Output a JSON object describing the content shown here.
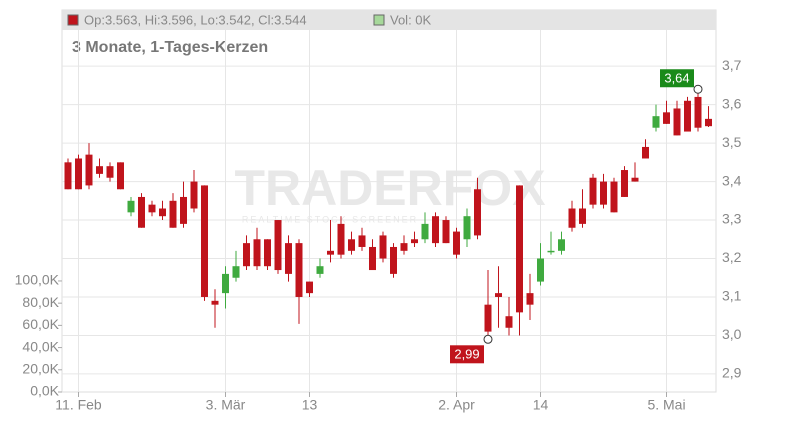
{
  "chart_data": {
    "type": "candlestick",
    "header": "Op:3.563, Hi:3.596, Lo:3.542, Cl:3.544",
    "volume_header": "Vol: 0K",
    "subtitle": "3 Monate, 1-Tages-Kerzen",
    "watermark": "TRADERFOX",
    "watermark_sub": "REALTIME STOCK SCREENER",
    "up_color": "#3faa3f",
    "down_color": "#c0141c",
    "categories": [
      null,
      "11. Feb",
      null,
      null,
      null,
      null,
      null,
      null,
      null,
      null,
      null,
      null,
      null,
      null,
      null,
      "3. Mär",
      null,
      null,
      null,
      null,
      null,
      null,
      null,
      "13",
      null,
      null,
      null,
      null,
      null,
      null,
      null,
      null,
      null,
      null,
      null,
      null,
      null,
      "2. Apr",
      null,
      null,
      null,
      null,
      null,
      null,
      null,
      "14",
      null,
      null,
      null,
      null,
      null,
      null,
      null,
      null,
      null,
      null,
      null,
      "5. Mai",
      null,
      null,
      null,
      null
    ],
    "open": [
      3.45,
      3.46,
      3.47,
      3.44,
      3.44,
      3.45,
      3.32,
      3.36,
      3.34,
      3.33,
      3.35,
      3.36,
      3.4,
      3.39,
      3.09,
      3.11,
      3.15,
      3.24,
      3.25,
      3.25,
      3.3,
      3.24,
      3.24,
      3.14,
      3.16,
      3.22,
      3.29,
      3.25,
      3.26,
      3.23,
      3.26,
      3.23,
      3.24,
      3.25,
      3.25,
      3.31,
      3.3,
      3.27,
      3.25,
      3.38,
      3.08,
      3.11,
      3.05,
      3.39,
      3.11,
      3.14,
      3.22,
      3.22,
      3.33,
      3.33,
      3.41,
      3.4,
      3.4,
      3.43,
      3.41,
      3.49,
      3.54,
      3.58,
      3.59,
      3.61,
      3.62,
      3.563
    ],
    "high": [
      3.46,
      3.47,
      3.5,
      3.46,
      3.45,
      3.45,
      3.36,
      3.37,
      3.35,
      3.35,
      3.37,
      3.4,
      3.43,
      3.39,
      3.12,
      3.18,
      3.22,
      3.26,
      3.28,
      3.25,
      3.3,
      3.26,
      3.25,
      3.14,
      3.2,
      3.3,
      3.31,
      3.27,
      3.28,
      3.25,
      3.27,
      3.24,
      3.26,
      3.27,
      3.32,
      3.32,
      3.31,
      3.28,
      3.33,
      3.41,
      3.17,
      3.18,
      3.1,
      3.39,
      3.16,
      3.24,
      3.27,
      3.27,
      3.35,
      3.38,
      3.42,
      3.42,
      3.41,
      3.44,
      3.45,
      3.51,
      3.6,
      3.61,
      3.61,
      3.62,
      3.64,
      3.596
    ],
    "low": [
      3.38,
      3.38,
      3.38,
      3.41,
      3.4,
      3.38,
      3.31,
      3.28,
      3.31,
      3.3,
      3.28,
      3.28,
      3.32,
      3.09,
      3.02,
      3.07,
      3.14,
      3.17,
      3.17,
      3.17,
      3.16,
      3.14,
      3.03,
      3.1,
      3.15,
      3.19,
      3.2,
      3.21,
      3.22,
      3.17,
      3.19,
      3.15,
      3.21,
      3.23,
      3.24,
      3.23,
      3.24,
      3.2,
      3.23,
      3.25,
      2.99,
      3.02,
      3.0,
      3.0,
      3.04,
      3.13,
      3.21,
      3.21,
      3.27,
      3.28,
      3.33,
      3.33,
      3.32,
      3.36,
      3.4,
      3.46,
      3.53,
      3.55,
      3.52,
      3.53,
      3.53,
      3.542
    ],
    "close": [
      3.38,
      3.38,
      3.39,
      3.42,
      3.41,
      3.38,
      3.35,
      3.28,
      3.32,
      3.31,
      3.28,
      3.29,
      3.33,
      3.1,
      3.08,
      3.16,
      3.18,
      3.18,
      3.18,
      3.18,
      3.17,
      3.16,
      3.1,
      3.11,
      3.18,
      3.21,
      3.21,
      3.22,
      3.23,
      3.17,
      3.2,
      3.16,
      3.22,
      3.24,
      3.29,
      3.24,
      3.24,
      3.21,
      3.31,
      3.26,
      3.01,
      3.1,
      3.02,
      3.06,
      3.08,
      3.2,
      3.22,
      3.25,
      3.28,
      3.29,
      3.34,
      3.34,
      3.32,
      3.36,
      3.4,
      3.46,
      3.57,
      3.55,
      3.52,
      3.53,
      3.54,
      3.544
    ],
    "annotations": [
      {
        "value": 3.64,
        "label": "3,64"
      },
      {
        "value": 2.99,
        "label": "2,99"
      }
    ],
    "ylim": [
      2.853,
      3.794
    ],
    "yticks": [
      {
        "value": 2.9,
        "label": "2,9"
      },
      {
        "value": 3.0,
        "label": "3,0"
      },
      {
        "value": 3.1,
        "label": "3,1"
      },
      {
        "value": 3.2,
        "label": "3,2"
      },
      {
        "value": 3.3,
        "label": "3,3"
      },
      {
        "value": 3.4,
        "label": "3,4"
      },
      {
        "value": 3.5,
        "label": "3,5"
      },
      {
        "value": 3.6,
        "label": "3,6"
      },
      {
        "value": 3.7,
        "label": "3,7"
      }
    ],
    "y2lim": [
      0,
      326
    ],
    "y2ticks": [
      {
        "value": 0,
        "label": "0,0K"
      },
      {
        "value": 20,
        "label": "20,0K"
      },
      {
        "value": 40,
        "label": "40,0K"
      },
      {
        "value": 60,
        "label": "60,0K"
      },
      {
        "value": 80,
        "label": "80,0K"
      },
      {
        "value": 100,
        "label": "100,0K"
      }
    ],
    "grid": true
  }
}
